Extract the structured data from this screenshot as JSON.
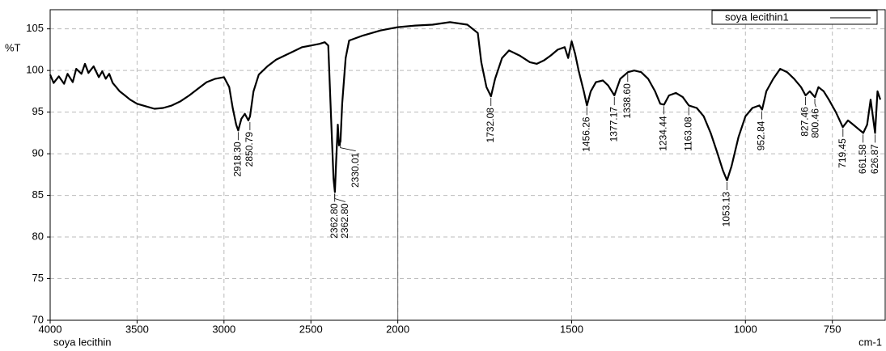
{
  "chart_data": {
    "type": "line",
    "ylabel": "%T",
    "xlabel": "cm-1",
    "sample_label": "soya lecithin",
    "legend": "upper right",
    "grid": true,
    "x_break": 2000,
    "xlim": [
      4000,
      598
    ],
    "ylim": [
      70,
      107.3
    ],
    "xticks": [
      4000,
      3500,
      3000,
      2500,
      2000,
      1500,
      1000,
      750
    ],
    "yticks": [
      70,
      75,
      80,
      85,
      90,
      95,
      100,
      105
    ],
    "series": [
      {
        "name": "soya lecithin1",
        "color": "#000000",
        "x": [
          4000,
          3980,
          3950,
          3920,
          3900,
          3870,
          3850,
          3820,
          3800,
          3780,
          3750,
          3720,
          3700,
          3680,
          3660,
          3640,
          3620,
          3600,
          3570,
          3540,
          3500,
          3450,
          3400,
          3350,
          3300,
          3250,
          3200,
          3150,
          3100,
          3050,
          3000,
          2970,
          2950,
          2930,
          2918,
          2900,
          2880,
          2860,
          2850,
          2830,
          2800,
          2750,
          2700,
          2650,
          2600,
          2550,
          2500,
          2450,
          2420,
          2400,
          2385,
          2370,
          2362,
          2355,
          2345,
          2338,
          2330,
          2320,
          2300,
          2280,
          2200,
          2100,
          2000,
          1950,
          1900,
          1850,
          1800,
          1770,
          1760,
          1745,
          1732,
          1720,
          1700,
          1680,
          1650,
          1620,
          1600,
          1580,
          1560,
          1540,
          1520,
          1510,
          1500,
          1490,
          1480,
          1465,
          1456,
          1445,
          1430,
          1410,
          1395,
          1377,
          1360,
          1338,
          1320,
          1300,
          1280,
          1260,
          1245,
          1234,
          1220,
          1200,
          1180,
          1163,
          1140,
          1120,
          1100,
          1080,
          1065,
          1053,
          1040,
          1020,
          1000,
          980,
          960,
          952,
          940,
          920,
          900,
          880,
          860,
          840,
          827,
          815,
          800,
          790,
          775,
          760,
          740,
          720,
          705,
          690,
          670,
          661,
          650,
          640,
          627,
          620,
          612
        ],
        "values": [
          99.5,
          98.5,
          99.3,
          98.4,
          99.6,
          98.6,
          100.2,
          99.6,
          100.8,
          99.7,
          100.5,
          99.2,
          99.9,
          99.0,
          99.6,
          98.5,
          98.0,
          97.5,
          97.0,
          96.5,
          96.0,
          95.7,
          95.4,
          95.5,
          95.8,
          96.3,
          97.0,
          97.8,
          98.6,
          99.0,
          99.2,
          98.0,
          95.5,
          93.5,
          92.8,
          94.2,
          94.8,
          94.0,
          94.5,
          97.5,
          99.5,
          100.5,
          101.3,
          101.8,
          102.3,
          102.8,
          103.0,
          103.2,
          103.4,
          103.0,
          95,
          87,
          85.4,
          89,
          93.5,
          91,
          91.5,
          96,
          101.5,
          103.6,
          104.2,
          104.8,
          105.2,
          105.4,
          105.5,
          105.8,
          105.5,
          104.5,
          101,
          98,
          96.9,
          99,
          101.5,
          102.4,
          101.8,
          101.0,
          100.8,
          101.2,
          101.8,
          102.5,
          102.8,
          101.5,
          103.5,
          102,
          100,
          97.5,
          95.8,
          97.5,
          98.6,
          98.8,
          98.2,
          97.0,
          99.0,
          99.8,
          100.0,
          99.8,
          99.0,
          97.5,
          96.0,
          95.9,
          97.0,
          97.3,
          96.8,
          95.8,
          95.5,
          94.5,
          92.5,
          90.0,
          88.0,
          86.8,
          88.5,
          92,
          94.5,
          95.5,
          95.8,
          95.3,
          97.5,
          99,
          100.2,
          99.8,
          99.0,
          98.0,
          97.0,
          97.5,
          96.8,
          98.0,
          97.5,
          96.5,
          95,
          93.2,
          94,
          93.5,
          92.8,
          92.5,
          93.5,
          96.5,
          92.5,
          97.5,
          96.5
        ]
      }
    ],
    "annotations": [
      {
        "x": 2918.3,
        "y": 92.8,
        "label": "2918.30"
      },
      {
        "x": 2850.79,
        "y": 94.0,
        "label": "2850.79"
      },
      {
        "x": 2362.8,
        "y": 85.4,
        "label": "2362.80"
      },
      {
        "x": 2362.8,
        "y": 85.4,
        "label": "2362.80"
      },
      {
        "x": 2330.01,
        "y": 91.5,
        "label": "2330.01"
      },
      {
        "x": 1732.08,
        "y": 96.9,
        "label": "1732.08"
      },
      {
        "x": 1456.26,
        "y": 95.8,
        "label": "1456.26"
      },
      {
        "x": 1377.17,
        "y": 97.0,
        "label": "1377.17"
      },
      {
        "x": 1338.6,
        "y": 99.8,
        "label": "1338.60"
      },
      {
        "x": 1234.44,
        "y": 95.9,
        "label": "1234.44"
      },
      {
        "x": 1163.08,
        "y": 95.8,
        "label": "1163.08"
      },
      {
        "x": 1053.13,
        "y": 86.8,
        "label": "1053.13"
      },
      {
        "x": 952.84,
        "y": 95.3,
        "label": "952.84"
      },
      {
        "x": 827.46,
        "y": 97.0,
        "label": "827.46"
      },
      {
        "x": 800.46,
        "y": 96.8,
        "label": "800.46"
      },
      {
        "x": 719.45,
        "y": 93.2,
        "label": "719.45"
      },
      {
        "x": 661.58,
        "y": 92.5,
        "label": "661.58"
      },
      {
        "x": 626.87,
        "y": 92.5,
        "label": "626.87"
      }
    ]
  }
}
